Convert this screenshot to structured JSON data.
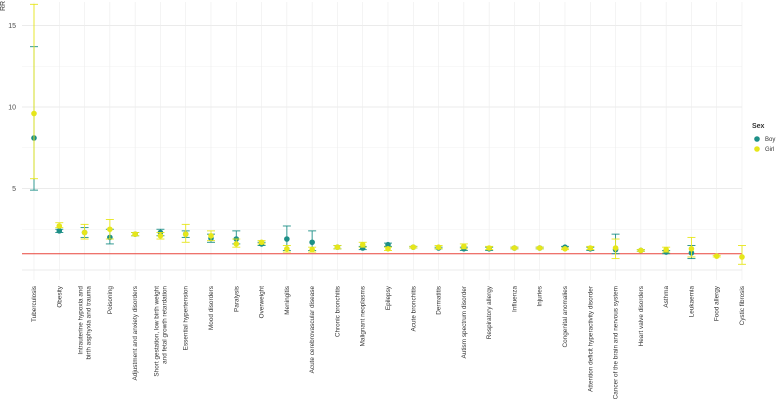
{
  "chart_data": {
    "type": "scatter",
    "ylabel": "RR",
    "ylim": [
      -0.5,
      16.5
    ],
    "yticks": [
      5,
      10,
      15
    ],
    "grid": true,
    "reference_line": 1,
    "reference_color": "#e8453c",
    "categories": [
      "Tuberculosis",
      "Obesity",
      "Intrauterine hypoxia and birth asphyxia and trauma",
      "Poisoning",
      "Adjustment and anxiety disorders",
      "Short gestation, low birth weight and fetal growth retardation",
      "Essential hypertension",
      "Mood disorders",
      "Paralysis",
      "Overweight",
      "Meningitis",
      "Acute cerebrovascular disease",
      "Chronic bronchitis",
      "Malignant neoplasms",
      "Epilepsy",
      "Acute bronchitis",
      "Dermatitis",
      "Autism spectrum disorder",
      "Respiratory allergy",
      "Influenza",
      "Injuries",
      "Congenital anomalies",
      "Attention deficit hyperactivity disorder",
      "Cancer of the brain and nervous system",
      "Heart valve disorders",
      "Asthma",
      "Leukaemia",
      "Food allergy",
      "Cystic fibrosis"
    ],
    "series": [
      {
        "name": "Boy",
        "color": "#1d8f87",
        "values": [
          8.1,
          2.4,
          2.3,
          2.0,
          2.2,
          2.3,
          2.2,
          1.95,
          1.9,
          1.6,
          1.9,
          1.7,
          1.4,
          1.35,
          1.55,
          1.4,
          1.35,
          1.3,
          1.3,
          1.35,
          1.35,
          1.4,
          1.3,
          1.25,
          1.2,
          1.1,
          1.05,
          null,
          null
        ],
        "lower": [
          4.9,
          2.3,
          2.0,
          1.6,
          2.1,
          2.1,
          2.0,
          1.7,
          1.6,
          1.5,
          1.2,
          1.2,
          1.3,
          1.25,
          1.45,
          1.35,
          1.3,
          1.2,
          1.2,
          1.3,
          1.3,
          1.35,
          1.2,
          1.0,
          1.15,
          1.0,
          0.7,
          null,
          null
        ],
        "upper": [
          13.7,
          2.5,
          2.6,
          2.5,
          2.3,
          2.5,
          2.4,
          2.2,
          2.4,
          1.7,
          2.7,
          2.4,
          1.5,
          1.45,
          1.65,
          1.45,
          1.4,
          1.4,
          1.4,
          1.4,
          1.4,
          1.45,
          1.4,
          2.2,
          1.25,
          1.2,
          1.5,
          null,
          null
        ]
      },
      {
        "name": "Girl",
        "color": "#e6e61a",
        "values": [
          9.6,
          2.7,
          2.3,
          2.5,
          2.2,
          2.1,
          2.2,
          2.1,
          1.6,
          1.7,
          1.3,
          1.25,
          1.4,
          1.55,
          1.3,
          1.4,
          1.4,
          1.45,
          1.35,
          1.35,
          1.35,
          1.3,
          1.35,
          1.35,
          1.2,
          1.25,
          1.3,
          0.85,
          0.8
        ],
        "lower": [
          5.6,
          2.6,
          1.9,
          1.9,
          2.1,
          1.9,
          1.7,
          1.8,
          1.4,
          1.6,
          1.1,
          1.1,
          1.3,
          1.4,
          1.2,
          1.35,
          1.3,
          1.3,
          1.25,
          1.3,
          1.3,
          1.25,
          1.25,
          0.7,
          1.15,
          1.1,
          0.8,
          0.8,
          0.35
        ],
        "upper": [
          16.3,
          2.9,
          2.8,
          3.1,
          2.3,
          2.3,
          2.8,
          2.4,
          1.9,
          1.8,
          1.5,
          1.4,
          1.5,
          1.7,
          1.4,
          1.45,
          1.5,
          1.6,
          1.45,
          1.4,
          1.4,
          1.35,
          1.45,
          1.9,
          1.25,
          1.4,
          2.0,
          0.9,
          1.5
        ]
      }
    ],
    "legend": {
      "title": "Sex",
      "position": "right"
    }
  }
}
